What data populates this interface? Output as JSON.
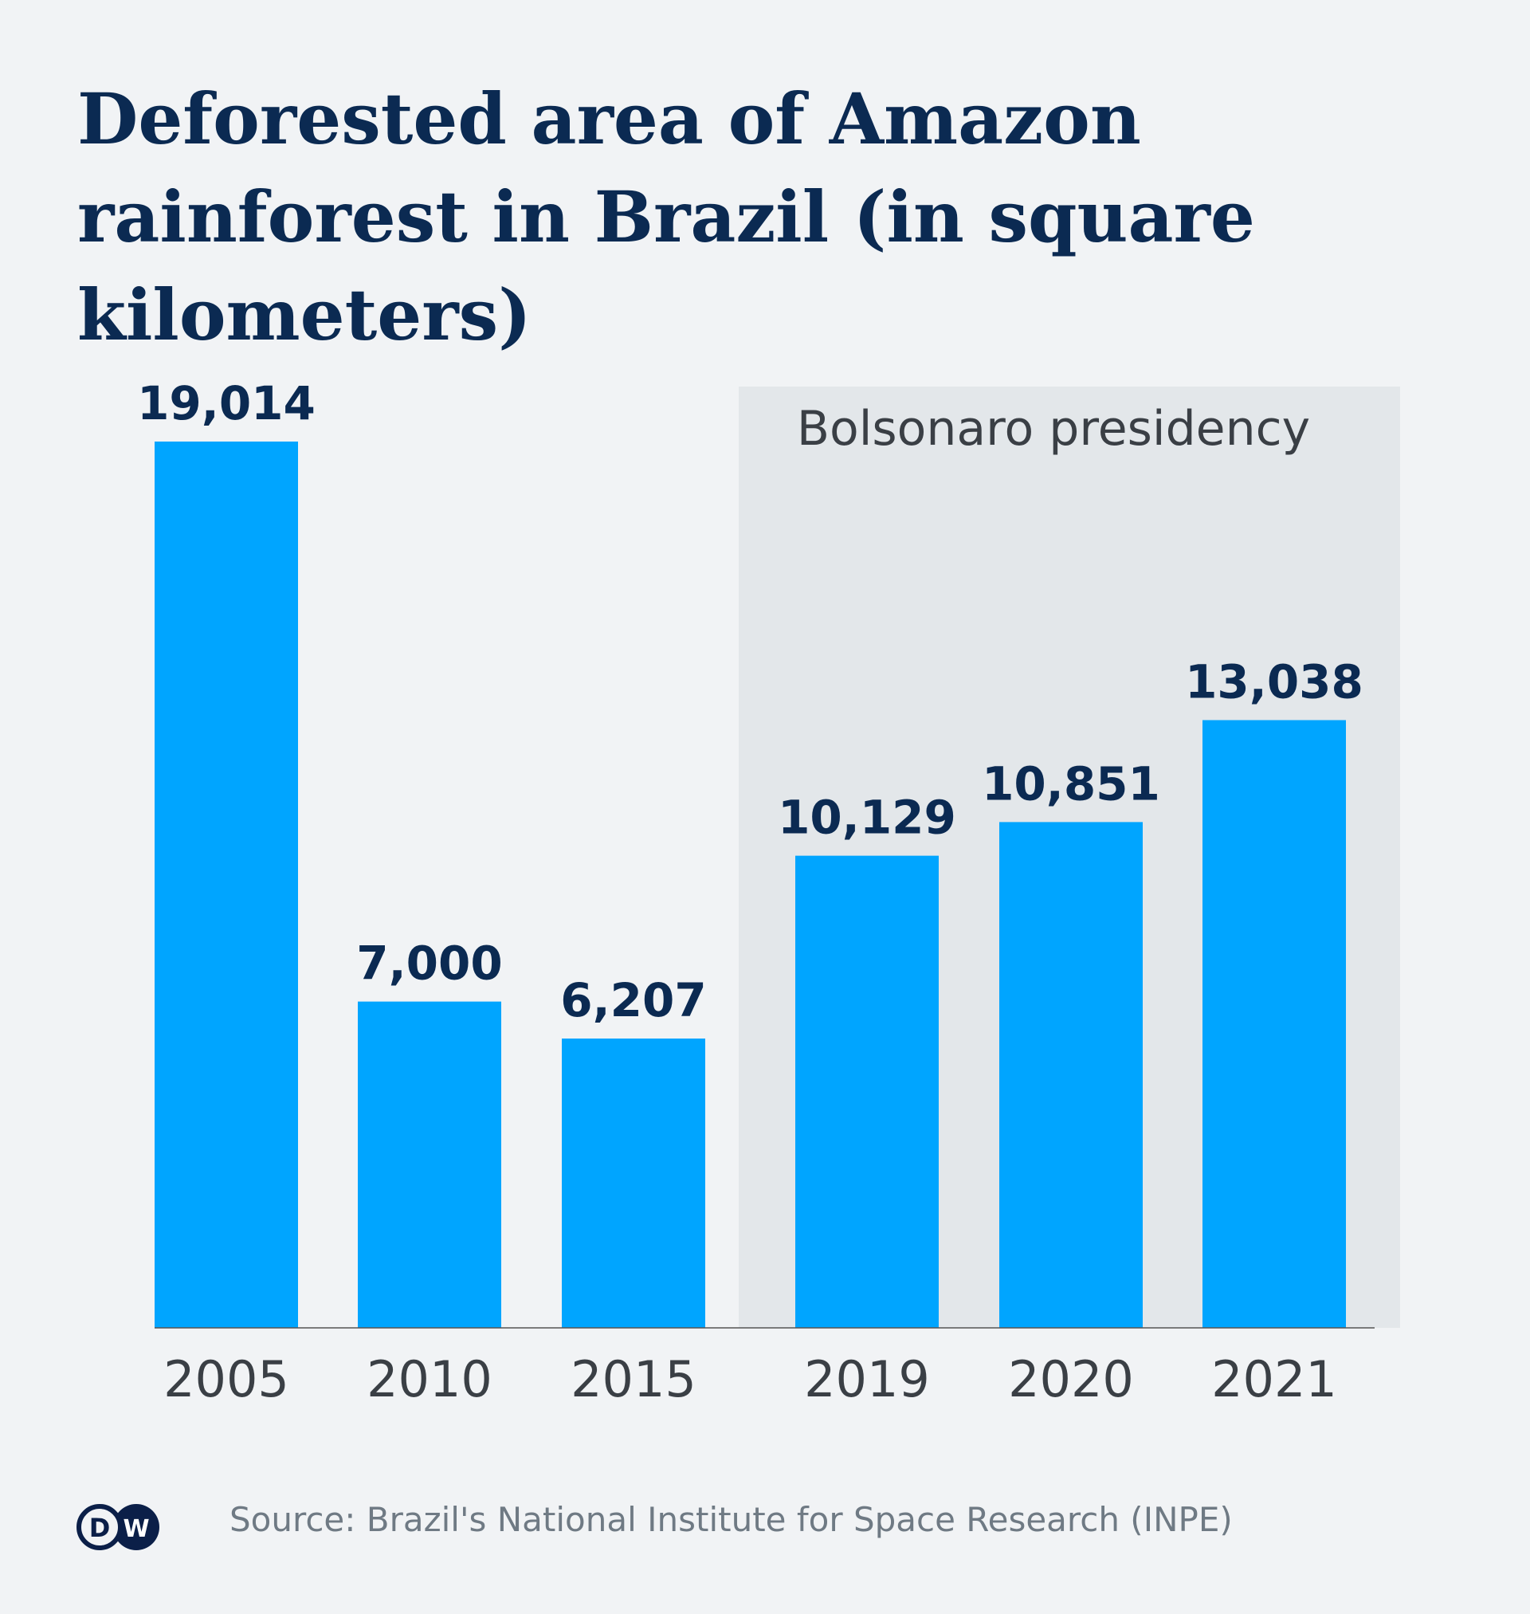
{
  "title": "Deforested area of Amazon rainforest in Brazil (in square kilometers)",
  "source": "Source: Brazil's National Institute for Space Research (INPE)",
  "logo_text": "DW",
  "colors": {
    "bar": "#00a5ff",
    "highlight_band": "#e3e7ea",
    "label": "#0b2a52",
    "tick": "#3a3f45",
    "background": "#f1f3f5",
    "logo": "#0b1f48"
  },
  "chart_data": {
    "type": "bar",
    "title": "Deforested area of Amazon rainforest in Brazil (in square kilometers)",
    "categories": [
      "2005",
      "2010",
      "2015",
      "2019",
      "2020",
      "2021"
    ],
    "values": [
      19014,
      7000,
      6207,
      10129,
      10851,
      13038
    ],
    "value_labels": [
      "19,014",
      "7,000",
      "6,207",
      "10,129",
      "10,851",
      "13,038"
    ],
    "ylim": [
      0,
      19014
    ],
    "grid": false,
    "xlabel": "",
    "ylabel": "",
    "annotations": [
      {
        "label": "Bolsonaro presidency",
        "categories": [
          "2019",
          "2020",
          "2021"
        ]
      }
    ]
  }
}
